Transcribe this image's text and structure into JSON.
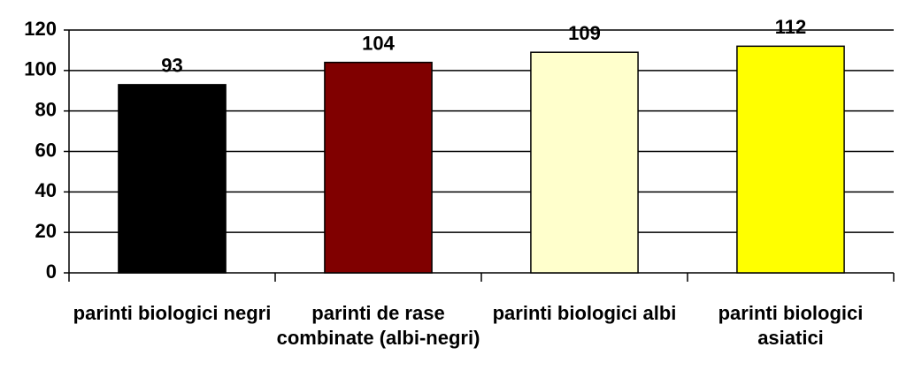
{
  "chart_data": {
    "type": "bar",
    "categories": [
      "parinti biologici negri",
      "parinti de rase combinate (albi-negri)",
      "parinti biologici albi",
      "parinti biologici asiatici"
    ],
    "values": [
      93,
      104,
      109,
      112
    ],
    "colors": [
      "#000000",
      "#800000",
      "#ffffcc",
      "#ffff00"
    ],
    "ylim": [
      0,
      120
    ],
    "yticks": [
      0,
      20,
      40,
      60,
      80,
      100,
      120
    ],
    "grid": true
  }
}
